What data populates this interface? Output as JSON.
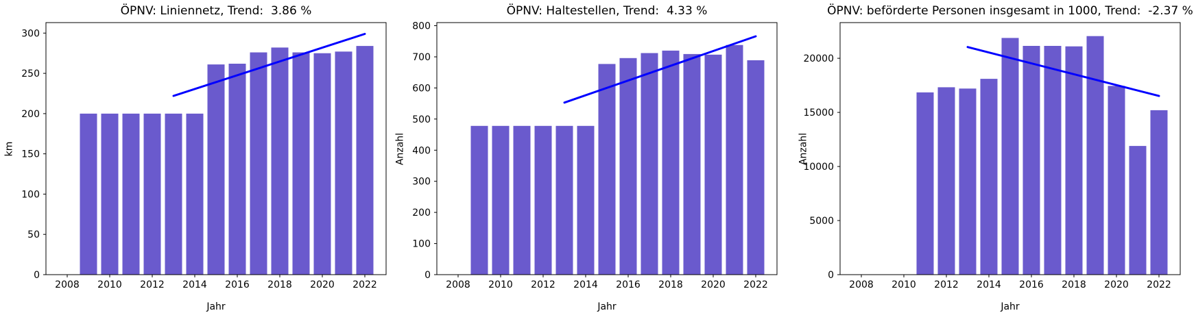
{
  "figure": {
    "background": "#ffffff",
    "bar_color": "#6a5acd",
    "trend_color": "#0000ff",
    "axis_color": "#000000"
  },
  "chart_data": [
    {
      "type": "bar",
      "title": "ÖPNV: Liniennetz, Trend:  3.86 %",
      "xlabel": "Jahr",
      "ylabel": "km",
      "categories": [
        2009,
        2010,
        2011,
        2012,
        2013,
        2014,
        2015,
        2016,
        2017,
        2018,
        2019,
        2020,
        2021,
        2022
      ],
      "values": [
        200,
        200,
        200,
        200,
        200,
        200,
        261,
        262,
        276,
        282,
        276,
        275,
        277,
        284
      ],
      "trend_line": {
        "x": [
          2013,
          2022
        ],
        "y": [
          222,
          299
        ]
      },
      "xticks": [
        2008,
        2010,
        2012,
        2014,
        2016,
        2018,
        2020,
        2022
      ],
      "yticks": [
        0,
        50,
        100,
        150,
        200,
        250,
        300
      ],
      "xlim": [
        2007,
        2023
      ],
      "ylim": [
        0,
        313
      ],
      "grid": false,
      "legend": false
    },
    {
      "type": "bar",
      "title": "ÖPNV: Haltestellen, Trend:  4.33 %",
      "xlabel": "Jahr",
      "ylabel": "Anzahl",
      "categories": [
        2009,
        2010,
        2011,
        2012,
        2013,
        2014,
        2015,
        2016,
        2017,
        2018,
        2019,
        2020,
        2021,
        2022
      ],
      "values": [
        478,
        478,
        478,
        478,
        478,
        478,
        677,
        696,
        712,
        720,
        709,
        707,
        738,
        689
      ],
      "trend_line": {
        "x": [
          2013,
          2022
        ],
        "y": [
          553,
          766
        ]
      },
      "xticks": [
        2008,
        2010,
        2012,
        2014,
        2016,
        2018,
        2020,
        2022
      ],
      "yticks": [
        0,
        100,
        200,
        300,
        400,
        500,
        600,
        700,
        800
      ],
      "xlim": [
        2007,
        2023
      ],
      "ylim": [
        0,
        810
      ],
      "grid": false,
      "legend": false
    },
    {
      "type": "bar",
      "title": "ÖPNV: beförderte Personen insgesamt in 1000, Trend:  -2.37 %",
      "xlabel": "Jahr",
      "ylabel": "Anzahl",
      "categories": [
        2011,
        2012,
        2013,
        2014,
        2015,
        2016,
        2017,
        2018,
        2019,
        2020,
        2021,
        2022
      ],
      "values": [
        16850,
        17320,
        17200,
        18100,
        21880,
        21150,
        21150,
        21100,
        22050,
        17450,
        11900,
        15200
      ],
      "trend_line": {
        "x": [
          2013,
          2022
        ],
        "y": [
          21040,
          16520
        ]
      },
      "xticks": [
        2008,
        2010,
        2012,
        2014,
        2016,
        2018,
        2020,
        2022
      ],
      "yticks": [
        0,
        5000,
        10000,
        15000,
        20000
      ],
      "xlim": [
        2007,
        2023
      ],
      "ylim": [
        0,
        23300
      ],
      "grid": false,
      "legend": false
    }
  ]
}
